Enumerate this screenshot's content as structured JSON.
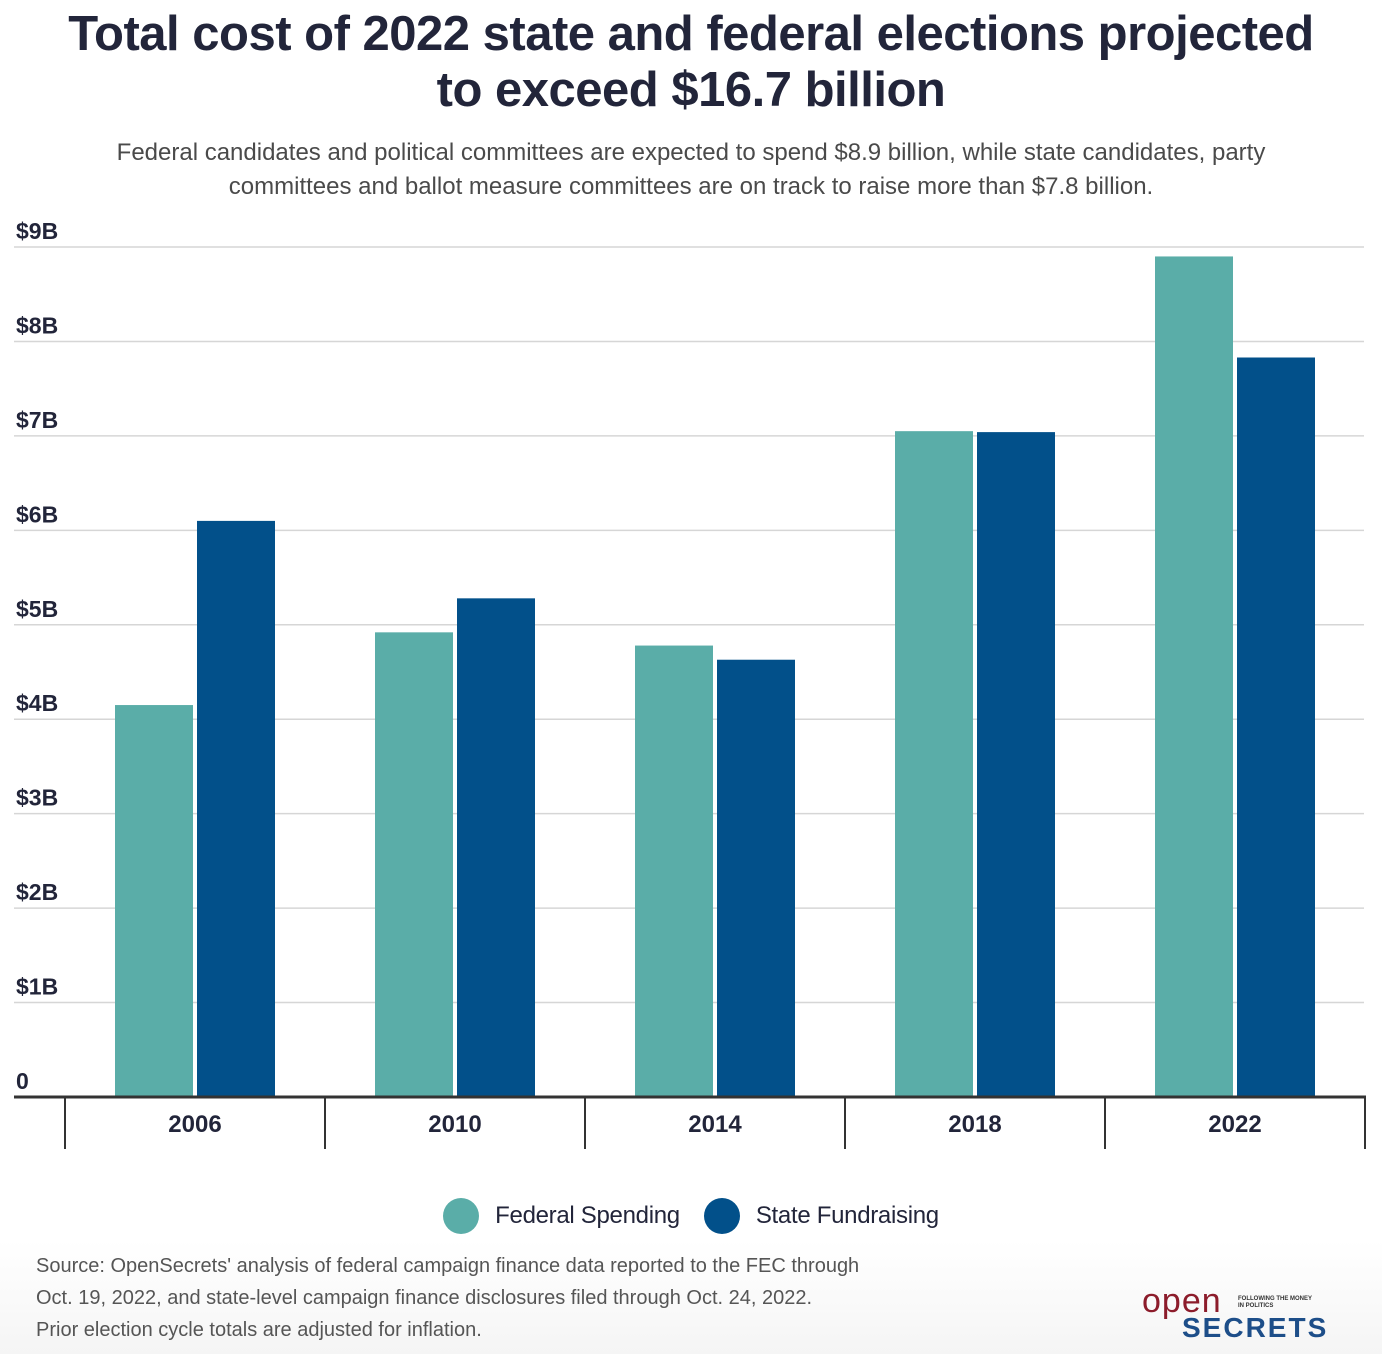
{
  "title_line1": "Total cost of 2022 state and federal elections projected",
  "title_line2": "to exceed $16.7 billion",
  "subtitle_line1": "Federal candidates and political committees are expected to spend $8.9 billion, while state candidates, party",
  "subtitle_line2": "committees and ballot measure committees are on track to raise more than $7.8 billion.",
  "chart_data": {
    "type": "bar",
    "title": "Total cost of 2022 state and federal elections projected to exceed $16.7 billion",
    "categories": [
      "2006",
      "2010",
      "2014",
      "2018",
      "2022"
    ],
    "series": [
      {
        "name": "Federal Spending",
        "color": "#5aada8",
        "values": [
          4.15,
          4.92,
          4.78,
          7.05,
          8.9
        ]
      },
      {
        "name": "State Fundraising",
        "color": "#02508a",
        "values": [
          6.1,
          5.28,
          4.63,
          7.04,
          7.83
        ]
      }
    ],
    "ylim": [
      0,
      9
    ],
    "yticks": [
      {
        "value": 0,
        "label": "0"
      },
      {
        "value": 1,
        "label": "$1B"
      },
      {
        "value": 2,
        "label": "$2B"
      },
      {
        "value": 3,
        "label": "$3B"
      },
      {
        "value": 4,
        "label": "$4B"
      },
      {
        "value": 5,
        "label": "$5B"
      },
      {
        "value": 6,
        "label": "$6B"
      },
      {
        "value": 7,
        "label": "$7B"
      },
      {
        "value": 8,
        "label": "$8B"
      },
      {
        "value": 9,
        "label": "$9B"
      }
    ],
    "xlabel": "",
    "ylabel": "",
    "grid": true,
    "legend_position": "bottom"
  },
  "legend": [
    {
      "label": "Federal Spending",
      "color": "#5aada8"
    },
    {
      "label": "State Fundraising",
      "color": "#02508a"
    }
  ],
  "source_line1": "Source: OpenSecrets' analysis of federal campaign finance data reported to the FEC through",
  "source_line2": "Oct. 19, 2022, and state-level campaign finance disclosures filed through Oct. 24, 2022.",
  "source_line3": "Prior election cycle totals are adjusted for inflation.",
  "logo": {
    "word1": "open",
    "tagline": "FOLLOWING THE MONEY IN POLITICS",
    "word2": "SECRETS"
  }
}
